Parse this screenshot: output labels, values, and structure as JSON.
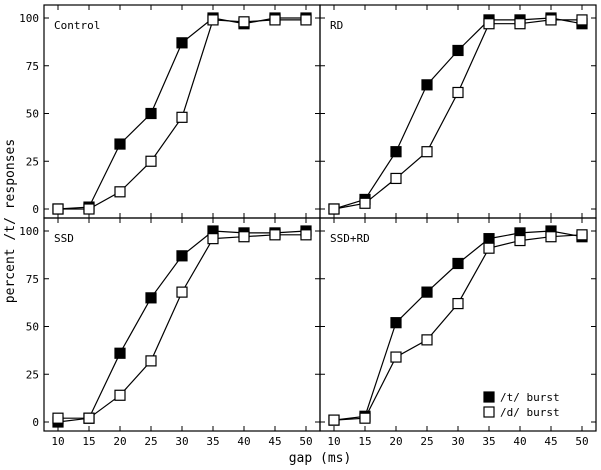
{
  "chart_data": {
    "type": "line",
    "x_values": [
      10,
      15,
      20,
      25,
      30,
      35,
      40,
      45,
      50
    ],
    "xlabel": "gap (ms)",
    "ylabel": "percent /t/ responses",
    "ylim": [
      0,
      100
    ],
    "yticks": [
      0,
      25,
      50,
      75,
      100
    ],
    "xticks_shown_on": "bottom row",
    "legend": {
      "placement": "bottom-right panel, lower right",
      "entries": [
        {
          "series": 0,
          "label": "/t/ burst",
          "marker": "filled-square"
        },
        {
          "series": 1,
          "label": "/d/ burst",
          "marker": "open-square"
        }
      ]
    },
    "series_styles": [
      {
        "marker": "filled-square",
        "color": "#000000"
      },
      {
        "marker": "open-square",
        "color": "#000000"
      }
    ],
    "panels": [
      {
        "label": "Control",
        "series": [
          {
            "name": "/t/ burst",
            "values": [
              0,
              1,
              34,
              50,
              87,
              100,
              97,
              100,
              100
            ]
          },
          {
            "name": "/d/ burst",
            "values": [
              0,
              0,
              9,
              25,
              48,
              99,
              98,
              99,
              99
            ]
          }
        ]
      },
      {
        "label": "RD",
        "series": [
          {
            "name": "/t/ burst",
            "values": [
              0,
              5,
              30,
              65,
              83,
              99,
              99,
              100,
              97
            ]
          },
          {
            "name": "/d/ burst",
            "values": [
              0,
              3,
              16,
              30,
              61,
              97,
              97,
              99,
              99
            ]
          }
        ]
      },
      {
        "label": "SSD",
        "series": [
          {
            "name": "/t/ burst",
            "values": [
              0,
              2,
              36,
              65,
              87,
              100,
              99,
              99,
              100
            ]
          },
          {
            "name": "/d/ burst",
            "values": [
              2,
              2,
              14,
              32,
              68,
              96,
              97,
              98,
              98
            ]
          }
        ]
      },
      {
        "label": "SSD+RD",
        "series": [
          {
            "name": "/t/ burst",
            "values": [
              1,
              3,
              52,
              68,
              83,
              96,
              99,
              100,
              97
            ]
          },
          {
            "name": "/d/ burst",
            "values": [
              1,
              2,
              34,
              43,
              62,
              91,
              95,
              97,
              98
            ]
          }
        ]
      }
    ]
  }
}
